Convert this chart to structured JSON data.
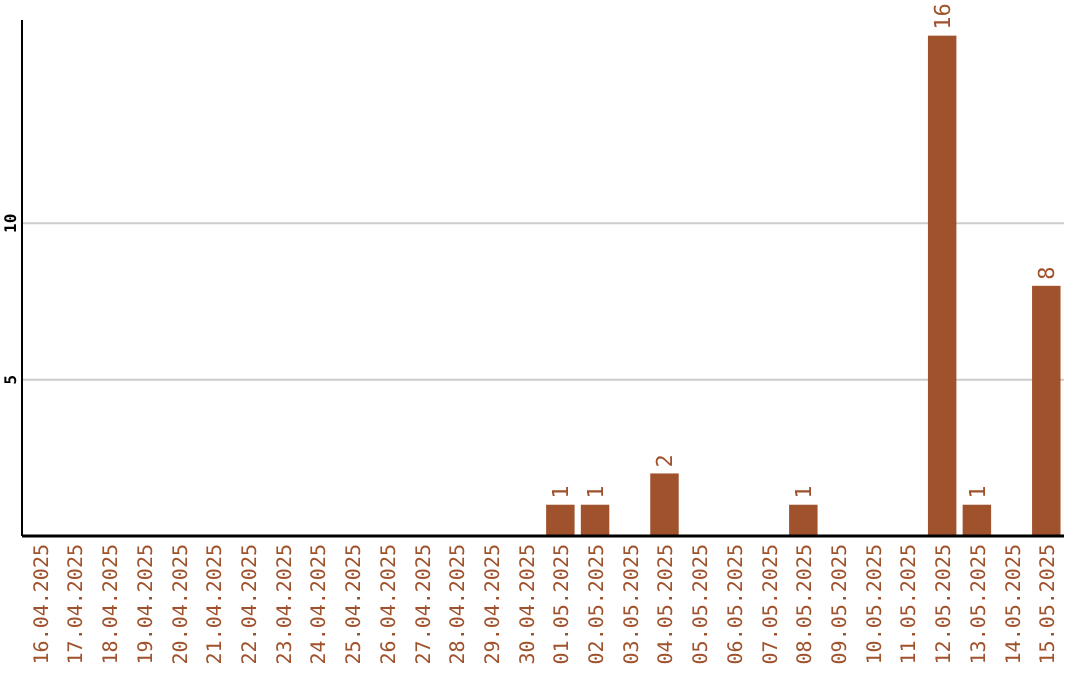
{
  "chart_data": {
    "type": "bar",
    "categories": [
      "16.04.2025",
      "17.04.2025",
      "18.04.2025",
      "19.04.2025",
      "20.04.2025",
      "21.04.2025",
      "22.04.2025",
      "23.04.2025",
      "24.04.2025",
      "25.04.2025",
      "26.04.2025",
      "27.04.2025",
      "28.04.2025",
      "29.04.2025",
      "30.04.2025",
      "01.05.2025",
      "02.05.2025",
      "03.05.2025",
      "04.05.2025",
      "05.05.2025",
      "06.05.2025",
      "07.05.2025",
      "08.05.2025",
      "09.05.2025",
      "10.05.2025",
      "11.05.2025",
      "12.05.2025",
      "13.05.2025",
      "14.05.2025",
      "15.05.2025"
    ],
    "values": [
      0,
      0,
      0,
      0,
      0,
      0,
      0,
      0,
      0,
      0,
      0,
      0,
      0,
      0,
      0,
      1,
      1,
      0,
      2,
      0,
      0,
      0,
      1,
      0,
      0,
      0,
      16,
      1,
      0,
      8
    ],
    "value_labels": [
      null,
      null,
      null,
      null,
      null,
      null,
      null,
      null,
      null,
      null,
      null,
      null,
      null,
      null,
      null,
      "1",
      "1",
      null,
      "2",
      null,
      null,
      null,
      "1",
      null,
      null,
      null,
      "16",
      "1",
      null,
      "8"
    ],
    "color": "#a0522d",
    "ylim": [
      0,
      16.5
    ],
    "yticks": [
      {
        "value": 0,
        "label": null
      },
      5,
      10
    ],
    "grid": "y"
  }
}
